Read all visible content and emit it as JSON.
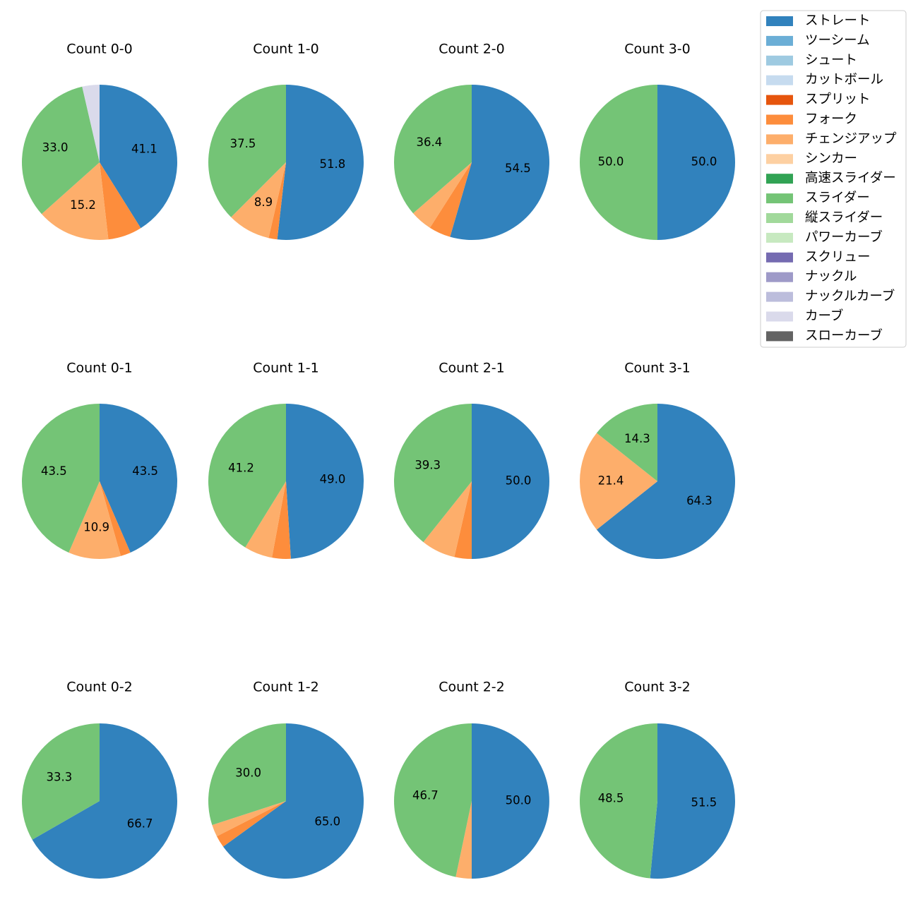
{
  "colors": {
    "ストレート": "#3182bd",
    "ツーシーム": "#6baed6",
    "シュート": "#9ecae1",
    "カットボール": "#c6dbef",
    "スプリット": "#e6550d",
    "フォーク": "#fd8d3c",
    "チェンジアップ": "#fdae6b",
    "シンカー": "#fdd0a2",
    "高速スライダー": "#31a354",
    "スライダー": "#74c476",
    "縦スライダー": "#a1d99b",
    "パワーカーブ": "#c7e9c0",
    "スクリュー": "#756bb1",
    "ナックル": "#9e9ac8",
    "ナックルカーブ": "#bcbddc",
    "カーブ": "#dadaeb",
    "スローカーブ": "#636363"
  },
  "legend": {
    "entries": [
      "ストレート",
      "ツーシーム",
      "シュート",
      "カットボール",
      "スプリット",
      "フォーク",
      "チェンジアップ",
      "シンカー",
      "高速スライダー",
      "スライダー",
      "縦スライダー",
      "パワーカーブ",
      "スクリュー",
      "ナックル",
      "ナックルカーブ",
      "カーブ",
      "スローカーブ"
    ]
  },
  "chart_data": [
    {
      "type": "pie",
      "title": "Count 0-0",
      "slices": [
        {
          "label": "ストレート",
          "value": 41.1,
          "display": "41.1"
        },
        {
          "label": "フォーク",
          "value": 7.1,
          "display": ""
        },
        {
          "label": "チェンジアップ",
          "value": 15.2,
          "display": "15.2"
        },
        {
          "label": "スライダー",
          "value": 33.0,
          "display": "33.0"
        },
        {
          "label": "カーブ",
          "value": 3.6,
          "display": ""
        }
      ]
    },
    {
      "type": "pie",
      "title": "Count 1-0",
      "slices": [
        {
          "label": "ストレート",
          "value": 51.8,
          "display": "51.8"
        },
        {
          "label": "フォーク",
          "value": 1.8,
          "display": ""
        },
        {
          "label": "チェンジアップ",
          "value": 8.9,
          "display": "8.9"
        },
        {
          "label": "スライダー",
          "value": 37.5,
          "display": "37.5"
        }
      ]
    },
    {
      "type": "pie",
      "title": "Count 2-0",
      "slices": [
        {
          "label": "ストレート",
          "value": 54.5,
          "display": "54.5"
        },
        {
          "label": "フォーク",
          "value": 4.55,
          "display": ""
        },
        {
          "label": "チェンジアップ",
          "value": 4.55,
          "display": ""
        },
        {
          "label": "スライダー",
          "value": 36.4,
          "display": "36.4"
        }
      ]
    },
    {
      "type": "pie",
      "title": "Count 3-0",
      "slices": [
        {
          "label": "ストレート",
          "value": 50.0,
          "display": "50.0"
        },
        {
          "label": "スライダー",
          "value": 50.0,
          "display": "50.0"
        }
      ]
    },
    {
      "type": "pie",
      "title": "Count 0-1",
      "slices": [
        {
          "label": "ストレート",
          "value": 43.5,
          "display": "43.5"
        },
        {
          "label": "フォーク",
          "value": 2.1,
          "display": ""
        },
        {
          "label": "チェンジアップ",
          "value": 10.9,
          "display": "10.9"
        },
        {
          "label": "スライダー",
          "value": 43.5,
          "display": "43.5"
        }
      ]
    },
    {
      "type": "pie",
      "title": "Count 1-1",
      "slices": [
        {
          "label": "ストレート",
          "value": 49.0,
          "display": "49.0"
        },
        {
          "label": "フォーク",
          "value": 3.9,
          "display": ""
        },
        {
          "label": "チェンジアップ",
          "value": 5.9,
          "display": ""
        },
        {
          "label": "スライダー",
          "value": 41.2,
          "display": "41.2"
        }
      ]
    },
    {
      "type": "pie",
      "title": "Count 2-1",
      "slices": [
        {
          "label": "ストレート",
          "value": 50.0,
          "display": "50.0"
        },
        {
          "label": "フォーク",
          "value": 3.6,
          "display": ""
        },
        {
          "label": "チェンジアップ",
          "value": 7.1,
          "display": ""
        },
        {
          "label": "スライダー",
          "value": 39.3,
          "display": "39.3"
        }
      ]
    },
    {
      "type": "pie",
      "title": "Count 3-1",
      "slices": [
        {
          "label": "ストレート",
          "value": 64.3,
          "display": "64.3"
        },
        {
          "label": "チェンジアップ",
          "value": 21.4,
          "display": "21.4"
        },
        {
          "label": "スライダー",
          "value": 14.3,
          "display": "14.3"
        }
      ]
    },
    {
      "type": "pie",
      "title": "Count 0-2",
      "slices": [
        {
          "label": "ストレート",
          "value": 66.7,
          "display": "66.7"
        },
        {
          "label": "スライダー",
          "value": 33.3,
          "display": "33.3"
        }
      ]
    },
    {
      "type": "pie",
      "title": "Count 1-2",
      "slices": [
        {
          "label": "ストレート",
          "value": 65.0,
          "display": "65.0"
        },
        {
          "label": "フォーク",
          "value": 2.5,
          "display": ""
        },
        {
          "label": "チェンジアップ",
          "value": 2.5,
          "display": ""
        },
        {
          "label": "スライダー",
          "value": 30.0,
          "display": "30.0"
        }
      ]
    },
    {
      "type": "pie",
      "title": "Count 2-2",
      "slices": [
        {
          "label": "ストレート",
          "value": 50.0,
          "display": "50.0"
        },
        {
          "label": "チェンジアップ",
          "value": 3.3,
          "display": ""
        },
        {
          "label": "スライダー",
          "value": 46.7,
          "display": "46.7"
        }
      ]
    },
    {
      "type": "pie",
      "title": "Count 3-2",
      "slices": [
        {
          "label": "ストレート",
          "value": 51.5,
          "display": "51.5"
        },
        {
          "label": "スライダー",
          "value": 48.5,
          "display": "48.5"
        }
      ]
    }
  ]
}
